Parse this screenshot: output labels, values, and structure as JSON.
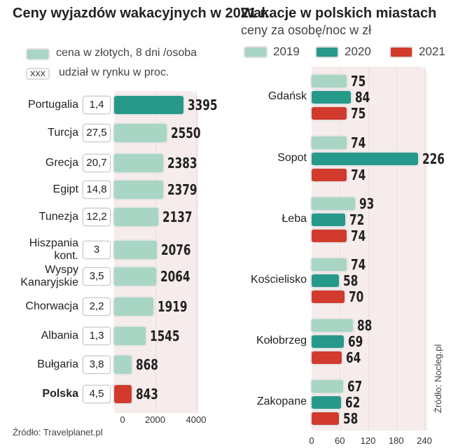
{
  "colors": {
    "c2019": "#a8d5c4",
    "c2020": "#27998a",
    "c2021": "#d13a2c",
    "bg": "#f6ecec"
  },
  "chart_data": [
    {
      "type": "bar",
      "orientation": "horizontal",
      "title": "Ceny wyjazdów wakacyjnych w 2021 r.",
      "legend": [
        "cena w złotych, 8 dni /osoba",
        "udział w rynku w proc."
      ],
      "legend_box_text": "XXX",
      "categories": [
        "Portugalia",
        "Turcja",
        "Grecja",
        "Egipt",
        "Tunezja",
        "Hiszpania kont.",
        "Wyspy Kanaryjskie",
        "Chorwacja",
        "Albania",
        "Bułgaria",
        "Polska"
      ],
      "values": [
        3395,
        2550,
        2383,
        2379,
        2137,
        2076,
        2064,
        1919,
        1545,
        868,
        843
      ],
      "market_share": [
        "1,4",
        "27,5",
        "20,7",
        "14,8",
        "12,2",
        "3",
        "3,5",
        "2,2",
        "1,3",
        "3,8",
        "4,5"
      ],
      "highlight": {
        "Portugalia": "#27998a",
        "Polska": "#d13a2c"
      },
      "xlim": [
        0,
        4000
      ],
      "xticks": [
        "0",
        "2000",
        "4000"
      ],
      "grid": true,
      "source": "Źródło: Travelplanet.pl"
    },
    {
      "type": "bar",
      "orientation": "horizontal",
      "title": "Wakacje w polskich miastach",
      "subtitle": "ceny za osobę/noc w zł",
      "categories": [
        "Gdańsk",
        "Sopot",
        "Łeba",
        "Kościelisko",
        "Kołobrzeg",
        "Zakopane"
      ],
      "series": [
        {
          "name": "2019",
          "values": [
            75,
            74,
            93,
            74,
            88,
            67
          ]
        },
        {
          "name": "2020",
          "values": [
            84,
            226,
            72,
            58,
            69,
            62
          ]
        },
        {
          "name": "2021",
          "values": [
            75,
            74,
            74,
            70,
            64,
            58
          ]
        }
      ],
      "xlim": [
        0,
        240
      ],
      "xticks": [
        "0",
        "60",
        "120",
        "180",
        "240"
      ],
      "grid": true,
      "legend_position": "top",
      "source": "Źródło: Nocleg.pl"
    }
  ]
}
